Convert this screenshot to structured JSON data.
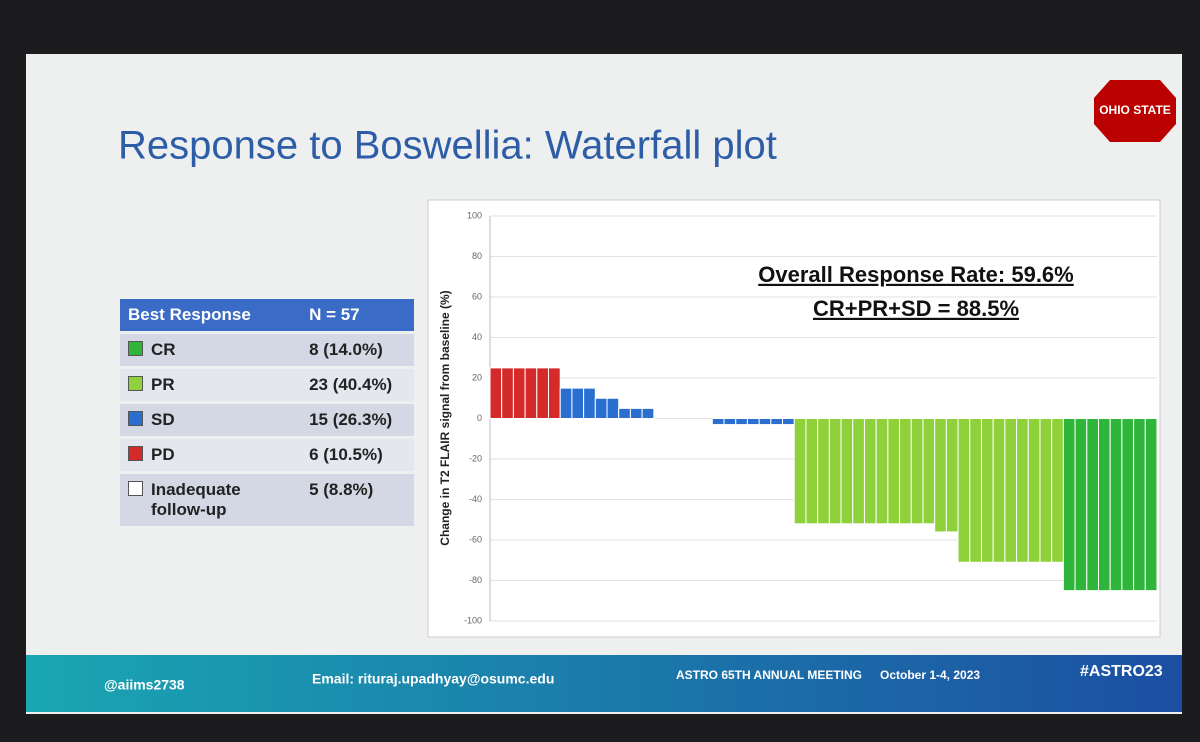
{
  "header": {
    "title": "Response to Boswellia: Waterfall plot",
    "logo": "OHIO STATE"
  },
  "table": {
    "header": [
      "Best Response",
      "N = 57"
    ],
    "rows": [
      [
        "CR",
        "8 (14.0%)"
      ],
      [
        "PR",
        "23 (40.4%)"
      ],
      [
        "SD",
        "15 (26.3%)"
      ],
      [
        "PD",
        "6 (10.5%)"
      ],
      [
        "Inadequate follow-up",
        "5 (8.8%)"
      ]
    ]
  },
  "chart_data": {
    "type": "bar",
    "y_label": "Change in T2 FLAIR signal from baseline (%)",
    "annotations": [
      "Overall Response Rate: 59.6%",
      "CR+PR+SD = 88.5%"
    ],
    "values": [
      25,
      25,
      25,
      25,
      25,
      25,
      15,
      15,
      15,
      10,
      10,
      5,
      5,
      5,
      0,
      0,
      0,
      0,
      0,
      -3,
      -3,
      -3,
      -3,
      -3,
      -3,
      -3,
      -52,
      -52,
      -52,
      -52,
      -52,
      -52,
      -52,
      -52,
      -52,
      -52,
      -52,
      -52,
      -56,
      -56,
      -71,
      -71,
      -71,
      -71,
      -71,
      -71,
      -71,
      -71,
      -71,
      -85,
      -85,
      -85,
      -85,
      -85,
      -85,
      -85,
      -85
    ],
    "colors": [
      "#d42a2a",
      "#d42a2a",
      "#d42a2a",
      "#d42a2a",
      "#d42a2a",
      "#d42a2a",
      "#2a6fd0",
      "#2a6fd0",
      "#2a6fd0",
      "#2a6fd0",
      "#2a6fd0",
      "#2a6fd0",
      "#2a6fd0",
      "#2a6fd0",
      "#2a6fd0",
      "#2a6fd0",
      "#2a6fd0",
      "#2a6fd0",
      "#2a6fd0",
      "#2a6fd0",
      "#2a6fd0",
      "#2a6fd0",
      "#2a6fd0",
      "#2a6fd0",
      "#2a6fd0",
      "#2a6fd0",
      "#8fd13a",
      "#8fd13a",
      "#8fd13a",
      "#8fd13a",
      "#8fd13a",
      "#8fd13a",
      "#8fd13a",
      "#8fd13a",
      "#8fd13a",
      "#8fd13a",
      "#8fd13a",
      "#8fd13a",
      "#8fd13a",
      "#8fd13a",
      "#8fd13a",
      "#8fd13a",
      "#8fd13a",
      "#8fd13a",
      "#8fd13a",
      "#8fd13a",
      "#8fd13a",
      "#8fd13a",
      "#8fd13a",
      "#2fb53a",
      "#2fb53a",
      "#2fb53a",
      "#2fb53a",
      "#2fb53a",
      "#2fb53a",
      "#2fb53a",
      "#2fb53a"
    ],
    "ylim": [
      -100,
      100
    ],
    "yticks": [
      100,
      80,
      60,
      40,
      20,
      0,
      -20,
      -40,
      -60,
      -80,
      -100
    ],
    "grid": true
  },
  "footer": {
    "handle": "@aiims2738",
    "email": "Email: rituraj.upadhyay@osumc.edu",
    "meeting": "ASTRO 65TH ANNUAL MEETING",
    "dates": "October 1-4, 2023",
    "hashtag": "#ASTRO23"
  }
}
